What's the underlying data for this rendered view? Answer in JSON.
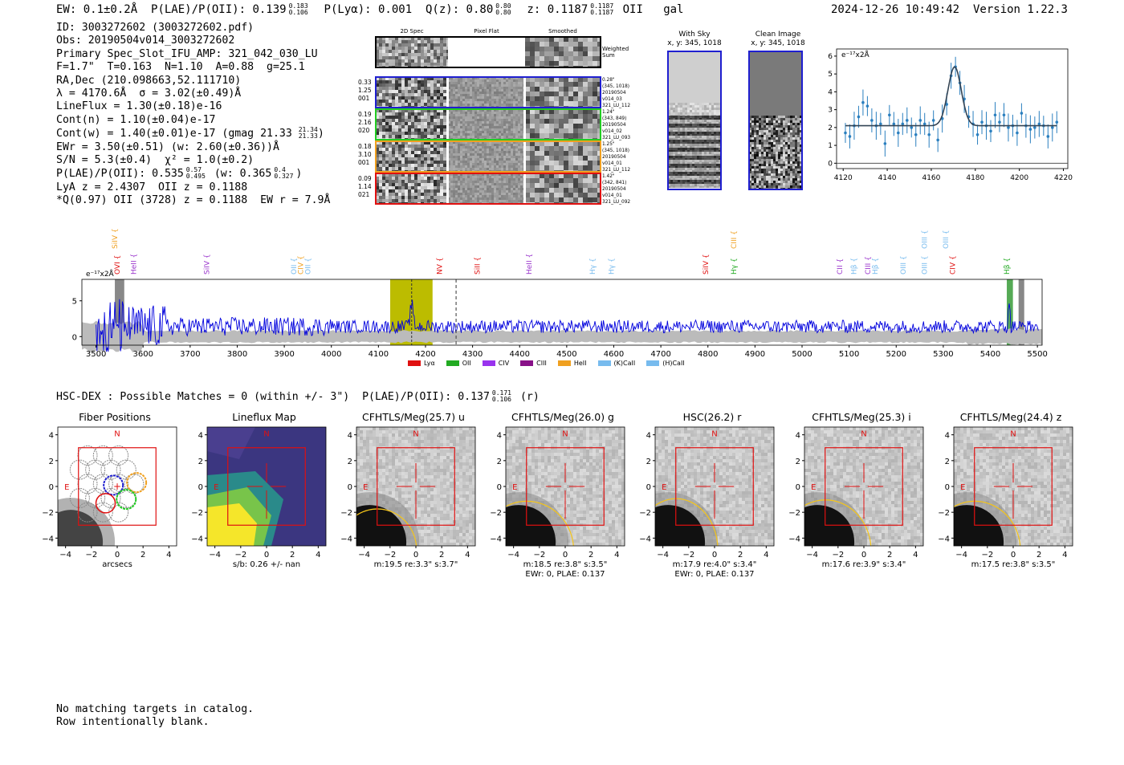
{
  "header": {
    "ew": "EW: 0.1±0.2Å",
    "plae_label": "P(LAE)/P(OII): 0.139",
    "plae_hi": "0.183",
    "plae_lo": "0.106",
    "plya": "P(Lyα): 0.001",
    "qz_label": "Q(z): 0.80",
    "qz_hi": "0.80",
    "qz_lo": "0.80",
    "z_label": "z: 0.1187",
    "z_hi": "0.1187",
    "z_lo": "0.1187",
    "line": "OII",
    "type": "gal",
    "timestamp": "2024-12-26 10:49:42",
    "version": "Version 1.22.3"
  },
  "info": {
    "id": "ID: 3003272602 (3003272602.pdf)",
    "obs": "Obs: 20190504v014_3003272602",
    "primary": "Primary Spec_Slot_IFU_AMP: 321_042_030_LU",
    "params": "F=1.7\"  T=0.163  N=1.10  A=0.88  g=25.1",
    "radec": "RA,Dec (210.098663,52.111710)",
    "lambda": "λ = 4170.6Å  σ = 3.02(±0.49)Å",
    "lineflux": "LineFlux = 1.30(±0.18)e-16",
    "contn": "Cont(n) = 1.10(±0.04)e-17",
    "contw": "Cont(w) = 1.40(±0.01)e-17 (gmag 21.33",
    "contw_hi": "21.34",
    "contw_lo": "21.33",
    "ewr": "EWr = 3.50(±0.51) (w: 2.60(±0.36))Å",
    "sn": "S/N = 5.3(±0.4)  χ² = 1.0(±0.2)",
    "plae": "P(LAE)/P(OII): 0.535",
    "plae_hi": "0.57",
    "plae_lo": "0.495",
    "plae_w": "(w: 0.365",
    "plae_w_hi": "0.4",
    "plae_w_lo": "0.327",
    "lya": "LyA z = 2.4307  OII z = 0.1188",
    "q": "*Q(0.97) OII (3728) z = 0.1188  EW r = 7.9Å"
  },
  "cutouts": {
    "headers": [
      "2D Spec",
      "Pixel Flat",
      "Smoothed"
    ],
    "weighted_label": "Weighted Sum",
    "rows": [
      {
        "left": [
          "0.33",
          "1.25",
          "001"
        ],
        "right": [
          "0.28\"",
          "(345, 1018)",
          "20190504",
          "v014_03",
          "321_LU_112"
        ],
        "color": "#1f1fd0"
      },
      {
        "left": [
          "0.19",
          "2.16",
          "020"
        ],
        "right": [
          "1.24\"",
          "(343, 849)",
          "20190504",
          "v014_02",
          "321_LU_093"
        ],
        "color": "#22cc22"
      },
      {
        "left": [
          "0.18",
          "3.10",
          "001"
        ],
        "right": [
          "1.25\"",
          "(345, 1018)",
          "20190504",
          "v014_01",
          "321_LU_112"
        ],
        "color": "#f0a020"
      },
      {
        "left": [
          "0.09",
          "1.14",
          "021"
        ],
        "right": [
          "1.42\"",
          "(342, 841)",
          "20190504",
          "v014_01",
          "321_LU_092"
        ],
        "color": "#e01010"
      }
    ],
    "with_sky": "With Sky",
    "with_sky_xy": "x, y: 345, 1018",
    "clean": "Clean Image",
    "clean_xy": "x, y: 345, 1018"
  },
  "zoom_chart": {
    "unit": "e⁻¹⁷x2Å",
    "xticks": [
      "4120",
      "4140",
      "4160",
      "4180",
      "4200",
      "4220"
    ],
    "yticks": [
      "0",
      "1",
      "2",
      "3",
      "4",
      "5",
      "6"
    ]
  },
  "chart_data": [
    {
      "type": "scatter",
      "ylabel": "e⁻¹⁷x2Å",
      "xlim": [
        4117,
        4222
      ],
      "ylim": [
        -0.3,
        6.4
      ],
      "x": [
        4121,
        4123,
        4125,
        4127,
        4129,
        4131,
        4133,
        4135,
        4137,
        4139,
        4141,
        4143,
        4145,
        4147,
        4149,
        4151,
        4153,
        4155,
        4157,
        4159,
        4161,
        4163,
        4165,
        4167,
        4169,
        4171,
        4173,
        4175,
        4177,
        4179,
        4181,
        4183,
        4185,
        4187,
        4189,
        4191,
        4193,
        4195,
        4197,
        4199,
        4201,
        4203,
        4205,
        4207,
        4209,
        4211,
        4213,
        4215,
        4217
      ],
      "y": [
        1.7,
        1.5,
        2.1,
        2.6,
        3.4,
        3.2,
        2.4,
        2.1,
        2.2,
        1.1,
        2.7,
        2.2,
        1.7,
        2.2,
        2.4,
        2.0,
        1.6,
        2.4,
        2.2,
        1.6,
        2.4,
        1.3,
        2.5,
        3.3,
        4.9,
        5.4,
        4.5,
        3.6,
        2.6,
        2.2,
        1.6,
        2.3,
        2.1,
        1.8,
        2.7,
        2.3,
        2.7,
        2.0,
        2.1,
        1.7,
        2.8,
        2.1,
        1.9,
        2.0,
        2.2,
        2.1,
        1.5,
        2.0,
        2.3
      ],
      "yerr": 0.7,
      "fit": {
        "center": 4170.6,
        "sigma": 3.02,
        "continuum": 2.1,
        "amplitude": 3.3
      }
    },
    {
      "type": "line",
      "ylabel": "e⁻¹⁷x2Å",
      "xlim": [
        3470,
        5510
      ],
      "ylim": [
        -1.2,
        8.0
      ],
      "xticks": [
        3500,
        3600,
        3700,
        3800,
        3900,
        4000,
        4100,
        4200,
        4300,
        4400,
        4500,
        4600,
        4700,
        4800,
        4900,
        5000,
        5100,
        5200,
        5300,
        5400,
        5500
      ],
      "yticks": [
        0,
        5
      ],
      "highlight_region": [
        4125,
        4215
      ],
      "detected_line": 4170.6,
      "dashed_line": 4265,
      "flux_baseline": 1.4,
      "noise_level": 0.8
    }
  ],
  "spec_lines": [
    {
      "name": "SiIV",
      "x": 3540,
      "color": "#f0a020",
      "row": "top"
    },
    {
      "name": "OVI",
      "x": 3545,
      "color": "#e01010",
      "row": "mid"
    },
    {
      "name": "HeII",
      "x": 3580,
      "color": "#9933cc",
      "row": "mid"
    },
    {
      "name": "SiIV",
      "x": 3735,
      "color": "#9933cc",
      "row": "mid"
    },
    {
      "name": "OII",
      "x": 3920,
      "color": "#77bbee",
      "row": "mid"
    },
    {
      "name": "CIV",
      "x": 3935,
      "color": "#f0a020",
      "row": "mid"
    },
    {
      "name": "OII",
      "x": 3950,
      "color": "#77bbee",
      "row": "mid"
    },
    {
      "name": "NV",
      "x": 4230,
      "color": "#e01010",
      "row": "mid"
    },
    {
      "name": "SiII",
      "x": 4310,
      "color": "#e01010",
      "row": "mid"
    },
    {
      "name": "HeII",
      "x": 4420,
      "color": "#9933cc",
      "row": "mid"
    },
    {
      "name": "Hγ",
      "x": 4555,
      "color": "#77bbee",
      "row": "mid"
    },
    {
      "name": "Hγ",
      "x": 4595,
      "color": "#77bbee",
      "row": "mid"
    },
    {
      "name": "SiIV",
      "x": 4795,
      "color": "#e01010",
      "row": "mid"
    },
    {
      "name": "CIII",
      "x": 4855,
      "color": "#f0a020",
      "row": "top"
    },
    {
      "name": "Hγ",
      "x": 4855,
      "color": "#22aa22",
      "row": "mid"
    },
    {
      "name": "CII",
      "x": 5080,
      "color": "#9933cc",
      "row": "mid"
    },
    {
      "name": "Hβ",
      "x": 5110,
      "color": "#77bbee",
      "row": "mid"
    },
    {
      "name": "CIII",
      "x": 5140,
      "color": "#9933cc",
      "row": "mid"
    },
    {
      "name": "Hβ",
      "x": 5155,
      "color": "#77bbee",
      "row": "mid"
    },
    {
      "name": "OIII",
      "x": 5215,
      "color": "#77bbee",
      "row": "mid"
    },
    {
      "name": "OIII",
      "x": 5260,
      "color": "#77bbee",
      "row": "top"
    },
    {
      "name": "OIII",
      "x": 5260,
      "color": "#77bbee",
      "row": "mid"
    },
    {
      "name": "OIII",
      "x": 5305,
      "color": "#77bbee",
      "row": "top"
    },
    {
      "name": "CIV",
      "x": 5320,
      "color": "#e01010",
      "row": "mid"
    },
    {
      "name": "Hβ",
      "x": 5435,
      "color": "#22aa22",
      "row": "mid"
    }
  ],
  "spec_legend": [
    {
      "label": "Lyα",
      "color": "#e01010"
    },
    {
      "label": "OII",
      "color": "#22aa22"
    },
    {
      "label": "CIV",
      "color": "#9933ee"
    },
    {
      "label": "CIII",
      "color": "#881188"
    },
    {
      "label": "HeII",
      "color": "#f0a020"
    },
    {
      "label": "(K)CaII",
      "color": "#77bbee"
    },
    {
      "label": "(H)CaII",
      "color": "#77bbee"
    }
  ],
  "spec_axis_unit": "e⁻¹⁷x2Å",
  "hsc": {
    "line": "HSC-DEX : Possible Matches = 0 (within +/- 3\")  P(LAE)/P(OII): 0.137",
    "hi": "0.171",
    "lo": "0.106",
    "suffix": "(r)"
  },
  "images": [
    {
      "title": "Fiber Positions",
      "caption1": "arcsecs",
      "caption2": "",
      "kind": "fiber"
    },
    {
      "title": "Lineflux Map",
      "caption1": "s/b: 0.26 +/- nan",
      "caption2": "",
      "kind": "lineflux"
    },
    {
      "title": "CFHTLS/Meg(25.7) u",
      "caption1": "m:19.5   re:3.3\"   s:3.7\"",
      "caption2": "",
      "kind": "galaxy",
      "ellipse": [
        1.8,
        3.2
      ]
    },
    {
      "title": "CFHTLS/Meg(26.0) g",
      "caption1": "m:18.5   re:3.8\"   s:3.5\"",
      "caption2": "EWr: 0, PLAE: 0.137",
      "kind": "galaxy",
      "ellipse": [
        2.4,
        3.8
      ]
    },
    {
      "title": "HSC(26.2) r",
      "caption1": "m:17.9   re:4.0\"   s:3.4\"",
      "caption2": "EWr: 0, PLAE: 0.137",
      "kind": "galaxy",
      "ellipse": [
        2.0,
        4.0
      ]
    },
    {
      "title": "CFHTLS/Meg(25.3) i",
      "caption1": "m:17.6   re:3.9\"   s:3.4\"",
      "caption2": "",
      "kind": "galaxy",
      "ellipse": [
        2.3,
        3.9
      ]
    },
    {
      "title": "CFHTLS/Meg(24.4) z",
      "caption1": "m:17.5   re:3.8\"   s:3.5\"",
      "caption2": "",
      "kind": "galaxy",
      "ellipse": [
        2.3,
        3.8
      ]
    }
  ],
  "image_axis": {
    "ticks": [
      "−4",
      "−2",
      "0",
      "2",
      "4"
    ],
    "n_label": "N",
    "e_label": "E"
  },
  "footer": {
    "line1": "No matching targets in catalog.",
    "line2": "Row intentionally blank."
  }
}
